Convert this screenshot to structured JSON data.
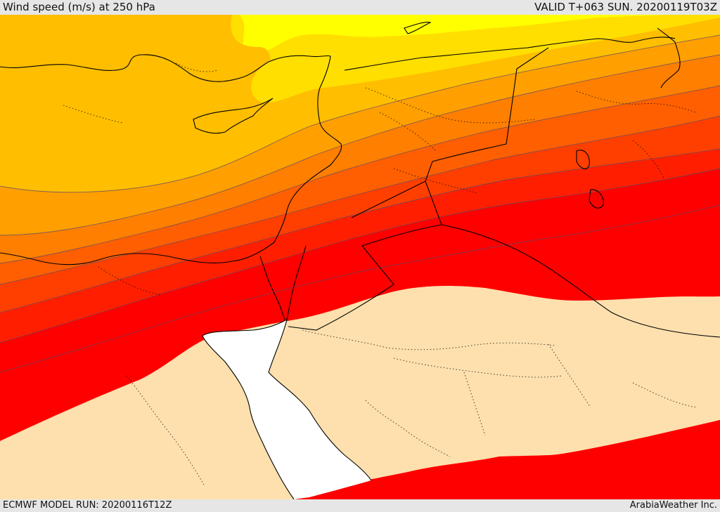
{
  "header": {
    "title": "Wind speed (m/s) at 250 hPa",
    "valid": "VALID T+063 SUN. 20200119T03Z"
  },
  "footer": {
    "model_run": "ECMWF MODEL RUN: 20200116T12Z",
    "credit": "ArabiaWeather Inc."
  },
  "colors": {
    "band_1": "#ffff00",
    "band_2": "#ffdf00",
    "band_3": "#ffbe00",
    "band_4": "#ff9f00",
    "band_5": "#ff7f00",
    "band_6": "#ff5f00",
    "band_7": "#ff3f00",
    "band_8": "#ff1f00",
    "band_9": "#ff0000",
    "below_threshold": "#fde0ad",
    "sea_masked": "#ffffff",
    "contour_line": "#5a4a6a",
    "coastline": "#000000"
  }
}
